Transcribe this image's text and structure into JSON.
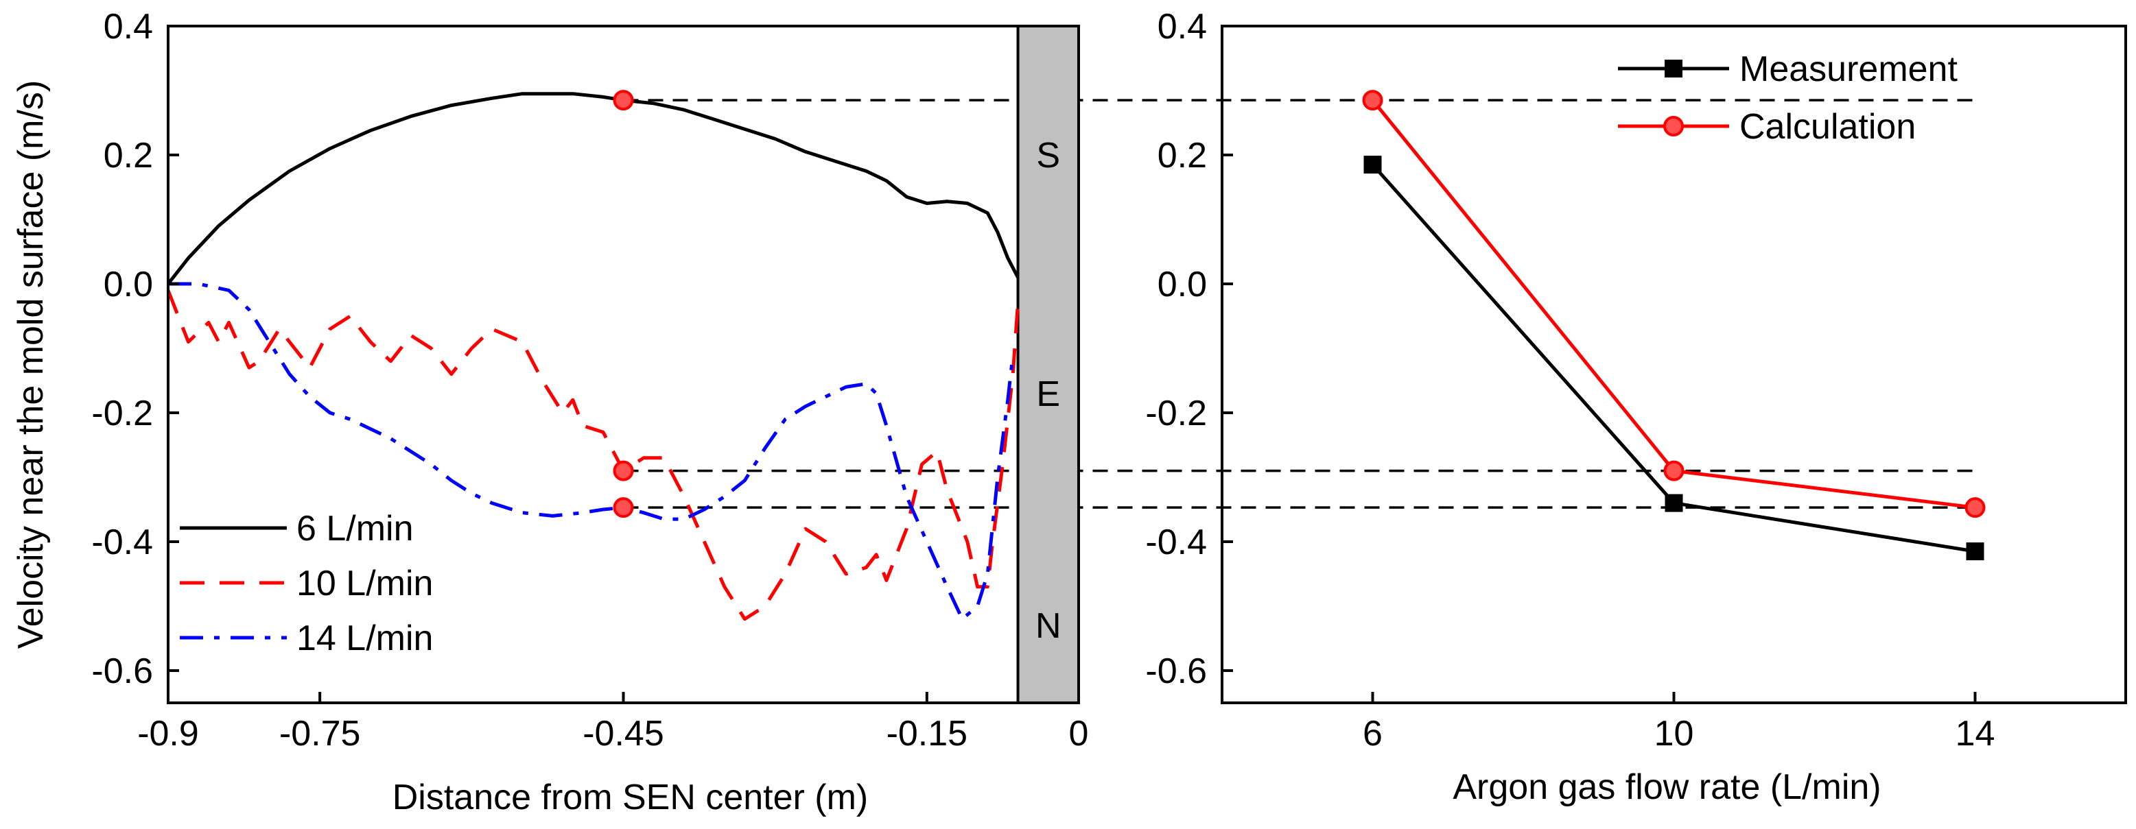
{
  "chart_data": [
    {
      "type": "line",
      "title": "",
      "xlabel": "Distance from SEN center (m)",
      "ylabel": "Velocity near the mold surface (m/s)",
      "xlim": [
        -0.9,
        0.0
      ],
      "ylim": [
        -0.65,
        0.4
      ],
      "xticks": [
        -0.9,
        -0.75,
        -0.45,
        -0.15,
        0
      ],
      "xtick_labels": [
        "-0.9",
        "-0.75",
        "-0.45",
        "-0.15",
        "0"
      ],
      "yticks": [
        0.4,
        0.2,
        0.0,
        -0.2,
        -0.4,
        -0.6
      ],
      "ytick_labels": [
        "0.4",
        "0.2",
        "0.0",
        "-0.2",
        "-0.4",
        "-0.6"
      ],
      "sen_region": {
        "x_from": -0.06,
        "x_to": 0.0,
        "labels": [
          "S",
          "E",
          "N"
        ]
      },
      "legend_position": "bottom-left",
      "series": [
        {
          "name": "6 L/min",
          "color": "#000000",
          "dash": "solid",
          "points": [
            [
              -0.9,
              0.0
            ],
            [
              -0.88,
              0.04
            ],
            [
              -0.85,
              0.09
            ],
            [
              -0.82,
              0.13
            ],
            [
              -0.78,
              0.175
            ],
            [
              -0.74,
              0.21
            ],
            [
              -0.7,
              0.238
            ],
            [
              -0.66,
              0.26
            ],
            [
              -0.62,
              0.277
            ],
            [
              -0.58,
              0.288
            ],
            [
              -0.55,
              0.295
            ],
            [
              -0.5,
              0.295
            ],
            [
              -0.47,
              0.29
            ],
            [
              -0.45,
              0.285
            ],
            [
              -0.42,
              0.28
            ],
            [
              -0.39,
              0.27
            ],
            [
              -0.36,
              0.255
            ],
            [
              -0.33,
              0.24
            ],
            [
              -0.3,
              0.225
            ],
            [
              -0.27,
              0.205
            ],
            [
              -0.24,
              0.19
            ],
            [
              -0.21,
              0.175
            ],
            [
              -0.19,
              0.16
            ],
            [
              -0.17,
              0.135
            ],
            [
              -0.15,
              0.125
            ],
            [
              -0.13,
              0.128
            ],
            [
              -0.11,
              0.125
            ],
            [
              -0.09,
              0.11
            ],
            [
              -0.08,
              0.08
            ],
            [
              -0.07,
              0.04
            ],
            [
              -0.06,
              0.01
            ]
          ]
        },
        {
          "name": "10 L/min",
          "color": "#ff0000",
          "dash": "dashed",
          "points": [
            [
              -0.9,
              -0.01
            ],
            [
              -0.89,
              -0.05
            ],
            [
              -0.88,
              -0.09
            ],
            [
              -0.86,
              -0.06
            ],
            [
              -0.85,
              -0.09
            ],
            [
              -0.84,
              -0.06
            ],
            [
              -0.82,
              -0.13
            ],
            [
              -0.81,
              -0.12
            ],
            [
              -0.79,
              -0.07
            ],
            [
              -0.76,
              -0.13
            ],
            [
              -0.74,
              -0.07
            ],
            [
              -0.72,
              -0.05
            ],
            [
              -0.7,
              -0.09
            ],
            [
              -0.68,
              -0.12
            ],
            [
              -0.66,
              -0.08
            ],
            [
              -0.64,
              -0.1
            ],
            [
              -0.62,
              -0.14
            ],
            [
              -0.6,
              -0.1
            ],
            [
              -0.58,
              -0.07
            ],
            [
              -0.55,
              -0.09
            ],
            [
              -0.53,
              -0.15
            ],
            [
              -0.51,
              -0.2
            ],
            [
              -0.5,
              -0.18
            ],
            [
              -0.49,
              -0.22
            ],
            [
              -0.47,
              -0.23
            ],
            [
              -0.45,
              -0.29
            ],
            [
              -0.43,
              -0.27
            ],
            [
              -0.41,
              -0.27
            ],
            [
              -0.39,
              -0.33
            ],
            [
              -0.37,
              -0.4
            ],
            [
              -0.35,
              -0.47
            ],
            [
              -0.33,
              -0.52
            ],
            [
              -0.31,
              -0.5
            ],
            [
              -0.29,
              -0.45
            ],
            [
              -0.27,
              -0.38
            ],
            [
              -0.25,
              -0.4
            ],
            [
              -0.23,
              -0.45
            ],
            [
              -0.21,
              -0.44
            ],
            [
              -0.2,
              -0.42
            ],
            [
              -0.19,
              -0.46
            ],
            [
              -0.17,
              -0.38
            ],
            [
              -0.155,
              -0.28
            ],
            [
              -0.14,
              -0.26
            ],
            [
              -0.13,
              -0.32
            ],
            [
              -0.12,
              -0.36
            ],
            [
              -0.11,
              -0.4
            ],
            [
              -0.1,
              -0.47
            ],
            [
              -0.09,
              -0.47
            ],
            [
              -0.085,
              -0.4
            ],
            [
              -0.075,
              -0.28
            ],
            [
              -0.065,
              -0.14
            ],
            [
              -0.06,
              -0.03
            ]
          ]
        },
        {
          "name": "14 L/min",
          "color": "#0000ff",
          "dash": "dashdot",
          "points": [
            [
              -0.9,
              0.0
            ],
            [
              -0.87,
              0.0
            ],
            [
              -0.84,
              -0.01
            ],
            [
              -0.82,
              -0.04
            ],
            [
              -0.8,
              -0.09
            ],
            [
              -0.78,
              -0.14
            ],
            [
              -0.76,
              -0.175
            ],
            [
              -0.74,
              -0.2
            ],
            [
              -0.72,
              -0.21
            ],
            [
              -0.7,
              -0.225
            ],
            [
              -0.68,
              -0.24
            ],
            [
              -0.66,
              -0.26
            ],
            [
              -0.64,
              -0.28
            ],
            [
              -0.62,
              -0.305
            ],
            [
              -0.6,
              -0.325
            ],
            [
              -0.58,
              -0.34
            ],
            [
              -0.55,
              -0.355
            ],
            [
              -0.52,
              -0.36
            ],
            [
              -0.49,
              -0.355
            ],
            [
              -0.47,
              -0.35
            ],
            [
              -0.45,
              -0.347
            ],
            [
              -0.43,
              -0.355
            ],
            [
              -0.41,
              -0.365
            ],
            [
              -0.39,
              -0.365
            ],
            [
              -0.37,
              -0.35
            ],
            [
              -0.35,
              -0.33
            ],
            [
              -0.33,
              -0.305
            ],
            [
              -0.31,
              -0.255
            ],
            [
              -0.29,
              -0.21
            ],
            [
              -0.27,
              -0.19
            ],
            [
              -0.25,
              -0.175
            ],
            [
              -0.23,
              -0.16
            ],
            [
              -0.21,
              -0.155
            ],
            [
              -0.2,
              -0.17
            ],
            [
              -0.19,
              -0.22
            ],
            [
              -0.17,
              -0.33
            ],
            [
              -0.15,
              -0.4
            ],
            [
              -0.13,
              -0.47
            ],
            [
              -0.115,
              -0.52
            ],
            [
              -0.1,
              -0.5
            ],
            [
              -0.09,
              -0.45
            ],
            [
              -0.08,
              -0.3
            ],
            [
              -0.07,
              -0.18
            ],
            [
              -0.065,
              -0.11
            ]
          ]
        }
      ],
      "markers": [
        {
          "series": "6 L/min",
          "x": -0.45,
          "y": 0.285
        },
        {
          "series": "10 L/min",
          "x": -0.45,
          "y": -0.29
        },
        {
          "series": "14 L/min",
          "x": -0.45,
          "y": -0.347
        }
      ]
    },
    {
      "type": "line",
      "title": "",
      "xlabel": "Argon gas flow rate (L/min)",
      "ylabel": "",
      "xlim": [
        4,
        16
      ],
      "ylim": [
        -0.65,
        0.4
      ],
      "xticks": [
        6,
        10,
        14
      ],
      "xtick_labels": [
        "6",
        "10",
        "14"
      ],
      "yticks": [
        0.4,
        0.2,
        0.0,
        -0.2,
        -0.4,
        -0.6
      ],
      "ytick_labels": [
        "0.4",
        "0.2",
        "0.0",
        "-0.2",
        "-0.4",
        "-0.6"
      ],
      "legend_position": "top-right",
      "series": [
        {
          "name": "Measurement",
          "color": "#000000",
          "marker": "square",
          "x": [
            6,
            10,
            14
          ],
          "values": [
            0.185,
            -0.34,
            -0.415
          ]
        },
        {
          "name": "Calculation",
          "color": "#ff0000",
          "marker": "circle",
          "x": [
            6,
            10,
            14
          ],
          "values": [
            0.285,
            -0.29,
            -0.347
          ]
        }
      ]
    }
  ],
  "connectors": [
    0.285,
    -0.29,
    -0.347
  ]
}
